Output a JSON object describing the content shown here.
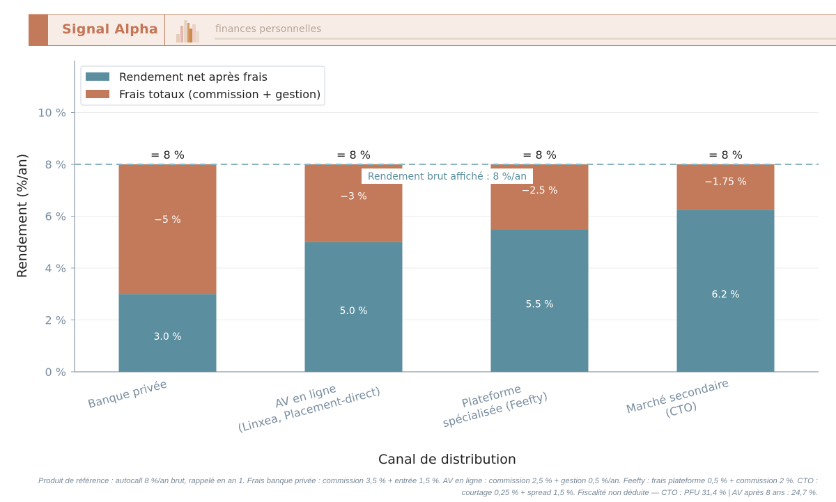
{
  "header": {
    "brand": "Signal Alpha",
    "tagline": "finances personnelles"
  },
  "chart_data": {
    "type": "bar",
    "stacked": true,
    "xlabel": "Canal de distribution",
    "ylabel": "Rendement (%/an)",
    "ylim": [
      0,
      12
    ],
    "yticks": [
      0,
      2,
      4,
      6,
      8,
      10
    ],
    "ytick_labels": [
      "0 %",
      "2 %",
      "4 %",
      "6 %",
      "8 %",
      "10 %"
    ],
    "grid": true,
    "legend_position": "top-left",
    "categories": [
      "Banque privée",
      "AV en ligne\n(Linxea, Placement-direct)",
      "Plateforme\nspécialisée (Feefty)",
      "Marché secondaire\n(CTO)"
    ],
    "series": [
      {
        "name": "Rendement net après frais",
        "color": "#5b8fa0",
        "values": [
          3.0,
          5.0,
          5.5,
          6.25
        ],
        "labels": [
          "3.0 %",
          "5.0 %",
          "5.5 %",
          "6.2 %"
        ]
      },
      {
        "name": "Frais totaux (commission + gestion)",
        "color": "#c27a5a",
        "values": [
          5,
          3,
          2.5,
          1.75
        ],
        "labels": [
          "−5 %",
          "−3 %",
          "−2.5 %",
          "−1.75 %"
        ]
      }
    ],
    "total_labels": [
      "= 8 %",
      "= 8 %",
      "= 8 %",
      "= 8 %"
    ],
    "reference_line": {
      "value": 8,
      "label": "Rendement brut affiché : 8 %/an",
      "color": "#8ab4c0"
    }
  },
  "footnote": "Produit de référence : autocall 8 %/an brut, rappelé en an 1. Frais banque privée : commission 3,5 % + entrée 1,5 %. AV en ligne : commission 2,5 % + gestion 0,5 %/an. Feefty : frais plateforme 0,5 % + commission 2 %. CTO : courtage 0,25 % + spread 1,5 %. Fiscalité non déduite — CTO : PFU 31,4 % | AV après 8 ans : 24,7 %."
}
